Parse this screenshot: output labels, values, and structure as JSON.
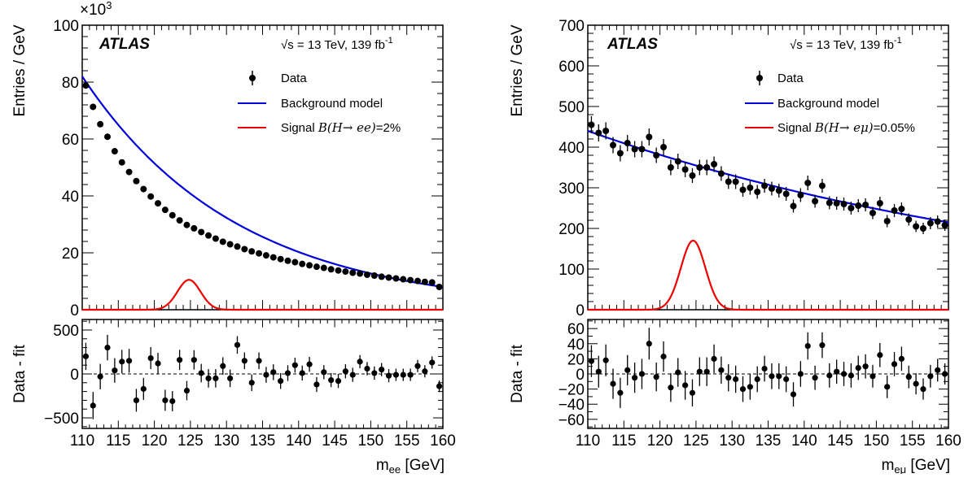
{
  "colors": {
    "data": "#000000",
    "background_model": "#0000dd",
    "signal": "#ee0000",
    "frame": "#000000"
  },
  "chart_data": [
    {
      "type": "scatter",
      "experiment": "ATLAS",
      "energy_label": "√s = 13 TeV, 139 fb",
      "energy_sup": "-1",
      "xlabel": "m",
      "xlabel_sub": "ee",
      "xlabel_unit": "[GeV]",
      "ylabel": "Entries / GeV",
      "ratio_ylabel": "Data - fit",
      "y_multiplier": "×10",
      "y_multiplier_exp": "3",
      "xlim": [
        110,
        160
      ],
      "ylim": [
        0,
        100000
      ],
      "ratio_ylim": [
        -620,
        620
      ],
      "x_ticks": [
        "110",
        "115",
        "120",
        "125",
        "130",
        "135",
        "140",
        "145",
        "150",
        "155",
        "160"
      ],
      "y_ticks": [
        "0",
        "20",
        "40",
        "60",
        "80",
        "100"
      ],
      "ratio_y_ticks": [
        "−500",
        "0",
        "500"
      ],
      "legend": {
        "data": "Data",
        "background": "Background model",
        "signal_pre": "Signal ",
        "signal_math": "B(H→ ee)",
        "signal_post": "=2%"
      },
      "x": [
        110.5,
        111.5,
        112.5,
        113.5,
        114.5,
        115.5,
        116.5,
        117.5,
        118.5,
        119.5,
        120.5,
        121.5,
        122.5,
        123.5,
        124.5,
        125.5,
        126.5,
        127.5,
        128.5,
        129.5,
        130.5,
        131.5,
        132.5,
        133.5,
        134.5,
        135.5,
        136.5,
        137.5,
        138.5,
        139.5,
        140.5,
        141.5,
        142.5,
        143.5,
        144.5,
        145.5,
        146.5,
        147.5,
        148.5,
        149.5,
        150.5,
        151.5,
        152.5,
        153.5,
        154.5,
        155.5,
        156.5,
        157.5,
        158.5,
        159.5
      ],
      "series": [
        {
          "name": "Data",
          "values": [
            78800,
            71300,
            65200,
            60800,
            55700,
            51800,
            48400,
            45200,
            42400,
            39800,
            37400,
            35100,
            33200,
            31400,
            29800,
            28600,
            27300,
            26100,
            25000,
            23900,
            23000,
            22200,
            21300,
            20500,
            19800,
            19100,
            18400,
            17800,
            17200,
            16700,
            16100,
            15600,
            15100,
            14700,
            14200,
            13800,
            13400,
            13000,
            12700,
            12300,
            12000,
            11600,
            11300,
            11000,
            10700,
            10400,
            10100,
            9800,
            9600,
            8000
          ],
          "ratio_values": [
            200,
            -360,
            -30,
            300,
            40,
            140,
            150,
            -300,
            -170,
            180,
            120,
            -300,
            -310,
            160,
            -190,
            160,
            10,
            -50,
            -50,
            90,
            -50,
            330,
            150,
            -100,
            150,
            -10,
            20,
            -80,
            10,
            100,
            10,
            110,
            -120,
            20,
            -70,
            -80,
            30,
            -10,
            140,
            60,
            10,
            50,
            -20,
            -10,
            -10,
            -10,
            90,
            30,
            130,
            -140
          ],
          "ratio_errors": [
            155,
            155,
            145,
            145,
            140,
            135,
            135,
            130,
            125,
            125,
            120,
            120,
            115,
            115,
            110,
            110,
            105,
            105,
            105,
            100,
            100,
            100,
            95,
            95,
            95,
            90,
            90,
            90,
            90,
            85,
            85,
            85,
            85,
            80,
            80,
            80,
            80,
            80,
            75,
            75,
            75,
            75,
            75,
            70,
            70,
            70,
            70,
            70,
            70,
            65
          ]
        },
        {
          "name": "Background model",
          "function": "exponential",
          "fit_points": [
            [
              110,
              82000
            ],
            [
              160,
              8000
            ]
          ]
        },
        {
          "name": "Signal",
          "shape": "gaussian",
          "mean": 124.8,
          "sigma": 1.6,
          "peak": 10500
        }
      ]
    },
    {
      "type": "scatter",
      "experiment": "ATLAS",
      "energy_label": "√s = 13 TeV, 139 fb",
      "energy_sup": "-1",
      "xlabel": "m",
      "xlabel_sub": "eμ",
      "xlabel_unit": "[GeV]",
      "ylabel": "Entries / GeV",
      "ratio_ylabel": "Data - fit",
      "xlim": [
        110,
        160
      ],
      "ylim": [
        0,
        700
      ],
      "ratio_ylim": [
        -72,
        72
      ],
      "x_ticks": [
        "110",
        "115",
        "120",
        "125",
        "130",
        "135",
        "140",
        "145",
        "150",
        "155",
        "160"
      ],
      "y_ticks": [
        "0",
        "100",
        "200",
        "300",
        "400",
        "500",
        "600",
        "700"
      ],
      "ratio_y_ticks": [
        "−60",
        "−40",
        "−20",
        "0",
        "20",
        "40",
        "60"
      ],
      "legend": {
        "data": "Data",
        "background": "Background model",
        "signal_pre": "Signal ",
        "signal_math": "B(H→ eμ)",
        "signal_post": "=0.05%"
      },
      "x": [
        110.5,
        111.5,
        112.5,
        113.5,
        114.5,
        115.5,
        116.5,
        117.5,
        118.5,
        119.5,
        120.5,
        121.5,
        122.5,
        123.5,
        124.5,
        125.5,
        126.5,
        127.5,
        128.5,
        129.5,
        130.5,
        131.5,
        132.5,
        133.5,
        134.5,
        135.5,
        136.5,
        137.5,
        138.5,
        139.5,
        140.5,
        141.5,
        142.5,
        143.5,
        144.5,
        145.5,
        146.5,
        147.5,
        148.5,
        149.5,
        150.5,
        151.5,
        152.5,
        153.5,
        154.5,
        155.5,
        156.5,
        157.5,
        158.5,
        159.5
      ],
      "series": [
        {
          "name": "Data",
          "values": [
            455,
            435,
            440,
            405,
            385,
            410,
            395,
            395,
            425,
            380,
            400,
            350,
            365,
            345,
            330,
            350,
            350,
            358,
            335,
            315,
            315,
            295,
            300,
            290,
            305,
            298,
            293,
            285,
            255,
            282,
            312,
            267,
            305,
            263,
            262,
            260,
            250,
            256,
            258,
            238,
            262,
            218,
            244,
            248,
            222,
            205,
            200,
            213,
            217,
            208
          ],
          "errors": [
            21,
            21,
            21,
            20,
            20,
            20,
            20,
            20,
            21,
            19,
            20,
            19,
            19,
            19,
            18,
            19,
            19,
            19,
            18,
            18,
            18,
            17,
            17,
            17,
            17,
            17,
            17,
            17,
            16,
            17,
            18,
            16,
            17,
            16,
            16,
            16,
            16,
            16,
            16,
            15,
            16,
            15,
            16,
            16,
            15,
            14,
            14,
            15,
            15,
            14
          ],
          "ratio_values": [
            17,
            3,
            18,
            -13,
            -25,
            5,
            -5,
            0,
            40,
            -4,
            23,
            -18,
            2,
            -15,
            -25,
            3,
            3,
            20,
            5,
            -5,
            -7,
            -20,
            -17,
            -7,
            7,
            -3,
            -3,
            -7,
            -27,
            0,
            37,
            -5,
            38,
            -2,
            3,
            0,
            -2,
            8,
            10,
            -3,
            25,
            -17,
            13,
            20,
            -4,
            -13,
            -20,
            -3,
            5,
            0
          ],
          "ratio_errors": [
            21,
            21,
            21,
            20,
            20,
            20,
            20,
            20,
            21,
            19,
            20,
            19,
            19,
            19,
            18,
            19,
            19,
            19,
            18,
            18,
            18,
            17,
            17,
            17,
            17,
            17,
            17,
            17,
            16,
            17,
            18,
            16,
            17,
            16,
            16,
            16,
            16,
            16,
            16,
            15,
            16,
            15,
            16,
            16,
            15,
            14,
            14,
            15,
            15,
            14
          ]
        },
        {
          "name": "Background model",
          "function": "exponential",
          "fit_points": [
            [
              110,
              440
            ],
            [
              160,
              215
            ]
          ]
        },
        {
          "name": "Signal",
          "shape": "gaussian",
          "mean": 124.6,
          "sigma": 1.7,
          "peak": 170
        }
      ]
    }
  ]
}
